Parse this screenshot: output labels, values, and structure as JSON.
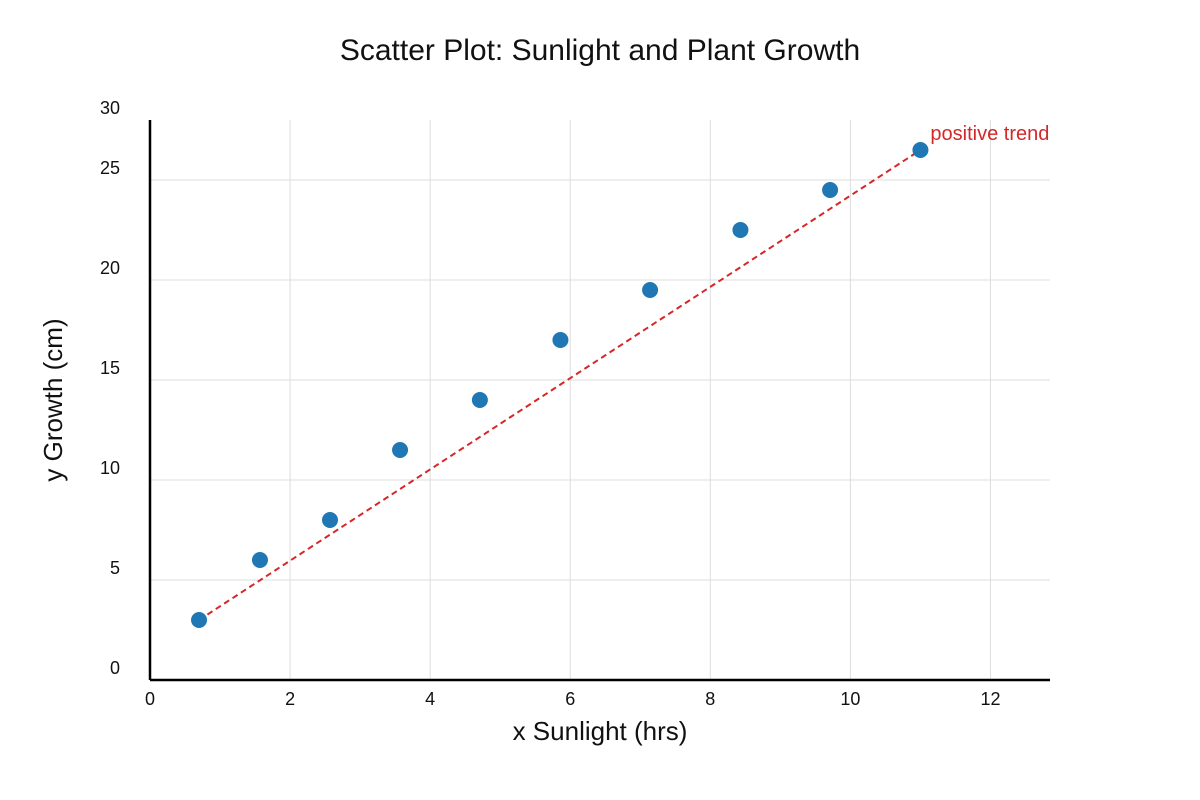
{
  "chart_data": {
    "type": "scatter",
    "title": "Scatter Plot: Sunlight and Plant Growth",
    "xlabel": "x Sunlight (hrs)",
    "ylabel": "y Growth (cm)",
    "xlim": [
      0,
      12.85
    ],
    "ylim": [
      0,
      28
    ],
    "x_ticks": [
      0,
      2,
      4,
      6,
      8,
      10,
      12
    ],
    "x_tick_labels": [
      "0",
      "2",
      "4",
      "6",
      "8",
      "10",
      "12"
    ],
    "y_ticks": [
      0,
      5,
      10,
      15,
      20,
      25,
      30
    ],
    "y_tick_labels": [
      "0",
      "5",
      "10",
      "15",
      "20",
      "25",
      "30"
    ],
    "grid": true,
    "series": [
      {
        "color": "#1f77b4",
        "points": [
          {
            "x": 0.7,
            "y": 3.0
          },
          {
            "x": 1.57,
            "y": 6.0
          },
          {
            "x": 2.57,
            "y": 8.0
          },
          {
            "x": 3.57,
            "y": 11.5
          },
          {
            "x": 4.71,
            "y": 14.0
          },
          {
            "x": 5.86,
            "y": 17.0
          },
          {
            "x": 7.14,
            "y": 19.5
          },
          {
            "x": 8.43,
            "y": 22.5
          },
          {
            "x": 9.71,
            "y": 24.5
          },
          {
            "x": 11.0,
            "y": 26.5
          }
        ]
      }
    ],
    "trend_line": {
      "color": "#d62728",
      "style": "dashed",
      "from": {
        "x": 0.7,
        "y": 3.0
      },
      "to": {
        "x": 11.0,
        "y": 26.5
      }
    },
    "annotations": [
      {
        "text": "positive trend",
        "x": 11.0,
        "y": 26.5,
        "color": "#d62728"
      }
    ]
  }
}
